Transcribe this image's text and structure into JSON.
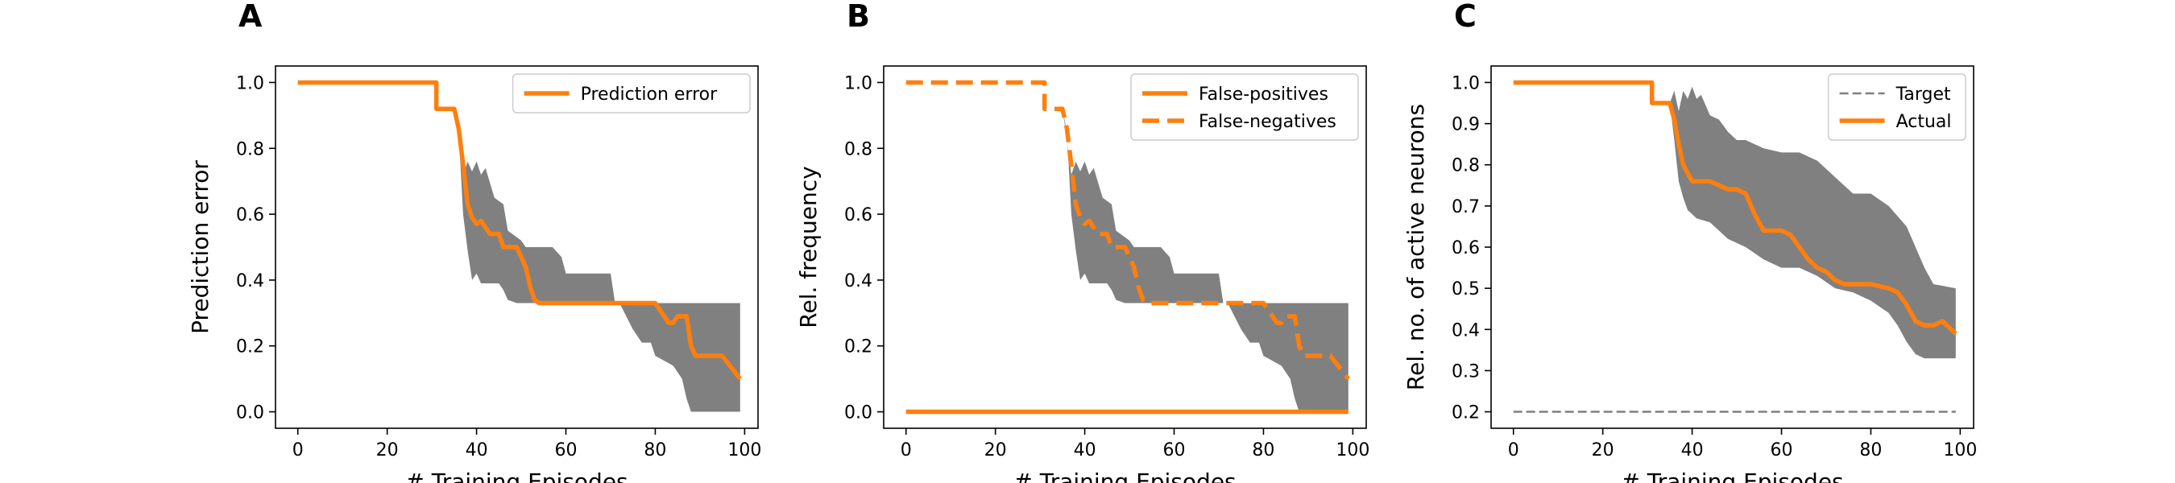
{
  "colors": {
    "orange": "#ff7f0e",
    "band": "#808080",
    "target": "#7f7f7f",
    "axis": "#000000"
  },
  "chart_data": [
    {
      "panel_label": "A",
      "type": "line",
      "xlabel": "# Training Episodes",
      "ylabel": "Prediction error",
      "xlim": [
        -5,
        103
      ],
      "ylim": [
        -0.05,
        1.05
      ],
      "xticks": [
        0,
        20,
        40,
        60,
        80,
        100
      ],
      "yticks": [
        0.0,
        0.2,
        0.4,
        0.6,
        0.8,
        1.0
      ],
      "ytick_decimals": 1,
      "legend": "upper-right",
      "legend_entries": [
        {
          "label": "Prediction error",
          "style": "solid"
        }
      ],
      "band": {
        "upper": [
          [
            0,
            1
          ],
          [
            31,
            1
          ],
          [
            31,
            0.92
          ],
          [
            35,
            0.92
          ],
          [
            36,
            0.83
          ],
          [
            37,
            0.72
          ],
          [
            38,
            0.76
          ],
          [
            39,
            0.73
          ],
          [
            40,
            0.76
          ],
          [
            41,
            0.72
          ],
          [
            42,
            0.74
          ],
          [
            44,
            0.65
          ],
          [
            46,
            0.63
          ],
          [
            47,
            0.55
          ],
          [
            50,
            0.52
          ],
          [
            51,
            0.5
          ],
          [
            57,
            0.5
          ],
          [
            59,
            0.47
          ],
          [
            60,
            0.42
          ],
          [
            70,
            0.42
          ],
          [
            71,
            0.33
          ],
          [
            99,
            0.33
          ]
        ],
        "lower": [
          [
            0,
            1
          ],
          [
            31,
            1
          ],
          [
            31,
            0.92
          ],
          [
            35,
            0.92
          ],
          [
            36,
            0.85
          ],
          [
            37,
            0.6
          ],
          [
            38,
            0.49
          ],
          [
            39,
            0.4
          ],
          [
            40,
            0.42
          ],
          [
            41,
            0.39
          ],
          [
            45,
            0.39
          ],
          [
            46,
            0.37
          ],
          [
            47,
            0.34
          ],
          [
            49,
            0.33
          ],
          [
            72,
            0.33
          ],
          [
            75,
            0.25
          ],
          [
            77,
            0.21
          ],
          [
            79,
            0.21
          ],
          [
            80,
            0.17
          ],
          [
            84,
            0.14
          ],
          [
            86,
            0.1
          ],
          [
            87,
            0.04
          ],
          [
            88,
            0.0
          ],
          [
            99,
            0.0
          ]
        ]
      },
      "series": [
        {
          "name": "Prediction error",
          "style": "solid",
          "points": [
            [
              0,
              1
            ],
            [
              31,
              1
            ],
            [
              31,
              0.92
            ],
            [
              35,
              0.92
            ],
            [
              36,
              0.86
            ],
            [
              37,
              0.75
            ],
            [
              38,
              0.63
            ],
            [
              39,
              0.59
            ],
            [
              40,
              0.57
            ],
            [
              41,
              0.58
            ],
            [
              42,
              0.56
            ],
            [
              43,
              0.54
            ],
            [
              45,
              0.54
            ],
            [
              46,
              0.5
            ],
            [
              49,
              0.5
            ],
            [
              51,
              0.44
            ],
            [
              52,
              0.38
            ],
            [
              53,
              0.34
            ],
            [
              54,
              0.33
            ],
            [
              80,
              0.33
            ],
            [
              81,
              0.31
            ],
            [
              83,
              0.27
            ],
            [
              84,
              0.27
            ],
            [
              85,
              0.29
            ],
            [
              87,
              0.29
            ],
            [
              88,
              0.2
            ],
            [
              89,
              0.17
            ],
            [
              95,
              0.17
            ],
            [
              99,
              0.1
            ]
          ]
        }
      ]
    },
    {
      "panel_label": "B",
      "type": "line",
      "xlabel": "# Training Episodes",
      "ylabel": "Rel. frequency",
      "xlim": [
        -5,
        103
      ],
      "ylim": [
        -0.05,
        1.05
      ],
      "xticks": [
        0,
        20,
        40,
        60,
        80,
        100
      ],
      "yticks": [
        0.0,
        0.2,
        0.4,
        0.6,
        0.8,
        1.0
      ],
      "ytick_decimals": 1,
      "legend": "upper-right",
      "legend_entries": [
        {
          "label": "False-positives",
          "style": "solid"
        },
        {
          "label": "False-negatives",
          "style": "dashed"
        }
      ],
      "band": {
        "upper": [
          [
            0,
            1
          ],
          [
            31,
            1
          ],
          [
            31,
            0.92
          ],
          [
            35,
            0.92
          ],
          [
            36,
            0.83
          ],
          [
            37,
            0.72
          ],
          [
            38,
            0.76
          ],
          [
            39,
            0.73
          ],
          [
            40,
            0.76
          ],
          [
            41,
            0.72
          ],
          [
            42,
            0.74
          ],
          [
            44,
            0.65
          ],
          [
            46,
            0.63
          ],
          [
            47,
            0.55
          ],
          [
            50,
            0.52
          ],
          [
            51,
            0.5
          ],
          [
            57,
            0.5
          ],
          [
            59,
            0.47
          ],
          [
            60,
            0.42
          ],
          [
            70,
            0.42
          ],
          [
            71,
            0.33
          ],
          [
            99,
            0.33
          ]
        ],
        "lower": [
          [
            0,
            1
          ],
          [
            31,
            1
          ],
          [
            31,
            0.92
          ],
          [
            35,
            0.92
          ],
          [
            36,
            0.85
          ],
          [
            37,
            0.6
          ],
          [
            38,
            0.49
          ],
          [
            39,
            0.4
          ],
          [
            40,
            0.42
          ],
          [
            41,
            0.39
          ],
          [
            45,
            0.39
          ],
          [
            46,
            0.37
          ],
          [
            47,
            0.34
          ],
          [
            49,
            0.33
          ],
          [
            72,
            0.33
          ],
          [
            75,
            0.25
          ],
          [
            77,
            0.21
          ],
          [
            79,
            0.21
          ],
          [
            80,
            0.17
          ],
          [
            84,
            0.14
          ],
          [
            86,
            0.1
          ],
          [
            87,
            0.04
          ],
          [
            88,
            0.0
          ],
          [
            99,
            0.0
          ]
        ]
      },
      "series": [
        {
          "name": "False-positives",
          "style": "solid",
          "points": [
            [
              0,
              0
            ],
            [
              99,
              0
            ]
          ]
        },
        {
          "name": "False-negatives",
          "style": "dashed",
          "points": [
            [
              0,
              1
            ],
            [
              31,
              1
            ],
            [
              31,
              0.92
            ],
            [
              35,
              0.92
            ],
            [
              36,
              0.86
            ],
            [
              37,
              0.75
            ],
            [
              38,
              0.63
            ],
            [
              39,
              0.59
            ],
            [
              40,
              0.57
            ],
            [
              41,
              0.58
            ],
            [
              42,
              0.56
            ],
            [
              43,
              0.54
            ],
            [
              45,
              0.54
            ],
            [
              46,
              0.5
            ],
            [
              49,
              0.5
            ],
            [
              51,
              0.44
            ],
            [
              52,
              0.38
            ],
            [
              53,
              0.34
            ],
            [
              54,
              0.33
            ],
            [
              80,
              0.33
            ],
            [
              81,
              0.31
            ],
            [
              83,
              0.27
            ],
            [
              84,
              0.27
            ],
            [
              85,
              0.29
            ],
            [
              87,
              0.29
            ],
            [
              88,
              0.2
            ],
            [
              89,
              0.17
            ],
            [
              95,
              0.17
            ],
            [
              99,
              0.1
            ]
          ]
        }
      ]
    },
    {
      "panel_label": "C",
      "type": "line",
      "xlabel": "# Training Episodes",
      "ylabel": "Rel. no. of active neurons",
      "xlim": [
        -5,
        103
      ],
      "ylim": [
        0.16,
        1.04
      ],
      "xticks": [
        0,
        20,
        40,
        60,
        80,
        100
      ],
      "yticks": [
        0.2,
        0.3,
        0.4,
        0.5,
        0.6,
        0.7,
        0.8,
        0.9,
        1.0
      ],
      "ytick_decimals": 1,
      "legend": "upper-right",
      "legend_entries": [
        {
          "label": "Target",
          "style": "target"
        },
        {
          "label": "Actual",
          "style": "solid"
        }
      ],
      "band": {
        "upper": [
          [
            0,
            1
          ],
          [
            31,
            1
          ],
          [
            31,
            0.95
          ],
          [
            35,
            0.95
          ],
          [
            36,
            0.98
          ],
          [
            37,
            0.93
          ],
          [
            38,
            0.98
          ],
          [
            39,
            0.96
          ],
          [
            40,
            0.99
          ],
          [
            41,
            0.96
          ],
          [
            42,
            0.97
          ],
          [
            44,
            0.92
          ],
          [
            46,
            0.91
          ],
          [
            48,
            0.88
          ],
          [
            50,
            0.86
          ],
          [
            52,
            0.86
          ],
          [
            56,
            0.84
          ],
          [
            60,
            0.83
          ],
          [
            64,
            0.83
          ],
          [
            68,
            0.81
          ],
          [
            72,
            0.77
          ],
          [
            76,
            0.73
          ],
          [
            80,
            0.73
          ],
          [
            84,
            0.7
          ],
          [
            88,
            0.65
          ],
          [
            90,
            0.6
          ],
          [
            92,
            0.55
          ],
          [
            94,
            0.51
          ],
          [
            99,
            0.5
          ]
        ],
        "lower": [
          [
            0,
            1
          ],
          [
            31,
            1
          ],
          [
            31,
            0.95
          ],
          [
            35,
            0.95
          ],
          [
            36,
            0.86
          ],
          [
            37,
            0.76
          ],
          [
            38,
            0.72
          ],
          [
            39,
            0.69
          ],
          [
            40,
            0.68
          ],
          [
            41,
            0.67
          ],
          [
            44,
            0.66
          ],
          [
            46,
            0.64
          ],
          [
            48,
            0.62
          ],
          [
            52,
            0.6
          ],
          [
            56,
            0.57
          ],
          [
            60,
            0.55
          ],
          [
            64,
            0.55
          ],
          [
            68,
            0.53
          ],
          [
            72,
            0.5
          ],
          [
            76,
            0.49
          ],
          [
            80,
            0.47
          ],
          [
            84,
            0.44
          ],
          [
            86,
            0.41
          ],
          [
            88,
            0.37
          ],
          [
            90,
            0.34
          ],
          [
            92,
            0.33
          ],
          [
            94,
            0.33
          ],
          [
            99,
            0.33
          ]
        ]
      },
      "series": [
        {
          "name": "Target",
          "style": "target",
          "points": [
            [
              0,
              0.2
            ],
            [
              99,
              0.2
            ]
          ]
        },
        {
          "name": "Actual",
          "style": "solid",
          "points": [
            [
              0,
              1
            ],
            [
              31,
              1
            ],
            [
              31,
              0.95
            ],
            [
              35,
              0.95
            ],
            [
              36,
              0.91
            ],
            [
              37,
              0.85
            ],
            [
              38,
              0.8
            ],
            [
              39,
              0.78
            ],
            [
              40,
              0.76
            ],
            [
              44,
              0.76
            ],
            [
              46,
              0.75
            ],
            [
              48,
              0.74
            ],
            [
              50,
              0.74
            ],
            [
              52,
              0.73
            ],
            [
              54,
              0.68
            ],
            [
              56,
              0.64
            ],
            [
              60,
              0.64
            ],
            [
              62,
              0.63
            ],
            [
              64,
              0.6
            ],
            [
              66,
              0.57
            ],
            [
              68,
              0.55
            ],
            [
              70,
              0.54
            ],
            [
              72,
              0.52
            ],
            [
              74,
              0.51
            ],
            [
              80,
              0.51
            ],
            [
              84,
              0.5
            ],
            [
              86,
              0.49
            ],
            [
              88,
              0.46
            ],
            [
              90,
              0.42
            ],
            [
              92,
              0.41
            ],
            [
              94,
              0.41
            ],
            [
              96,
              0.42
            ],
            [
              99,
              0.39
            ]
          ]
        }
      ]
    }
  ]
}
